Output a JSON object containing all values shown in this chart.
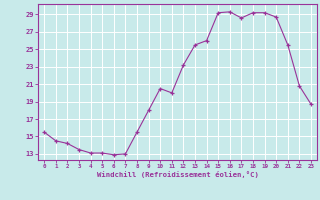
{
  "x": [
    0,
    1,
    2,
    3,
    4,
    5,
    6,
    7,
    8,
    9,
    10,
    11,
    12,
    13,
    14,
    15,
    16,
    17,
    18,
    19,
    20,
    21,
    22,
    23
  ],
  "y": [
    15.5,
    14.5,
    14.2,
    13.5,
    13.1,
    13.1,
    12.9,
    13.0,
    15.5,
    18.0,
    20.5,
    20.0,
    23.2,
    25.5,
    26.0,
    29.2,
    29.3,
    28.6,
    29.2,
    29.2,
    28.7,
    25.5,
    20.8,
    18.7
  ],
  "line_color": "#993399",
  "marker_color": "#993399",
  "bg_color": "#c8eaea",
  "grid_color": "#b0d8d8",
  "xlabel": "Windchill (Refroidissement éolien,°C)",
  "ylabel_ticks": [
    13,
    15,
    17,
    19,
    21,
    23,
    25,
    27,
    29
  ],
  "xlim": [
    -0.5,
    23.5
  ],
  "ylim": [
    12.3,
    30.2
  ],
  "xticks": [
    0,
    1,
    2,
    3,
    4,
    5,
    6,
    7,
    8,
    9,
    10,
    11,
    12,
    13,
    14,
    15,
    16,
    17,
    18,
    19,
    20,
    21,
    22,
    23
  ],
  "label_color": "#993399",
  "tick_color": "#993399",
  "axis_color": "#993399",
  "white_grid": "#ffffff"
}
